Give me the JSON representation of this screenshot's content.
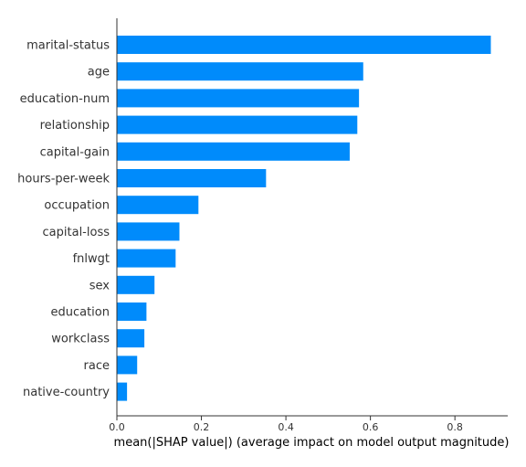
{
  "chart_data": {
    "type": "bar",
    "orientation": "horizontal",
    "categories": [
      "marital-status",
      "age",
      "education-num",
      "relationship",
      "capital-gain",
      "hours-per-week",
      "occupation",
      "capital-loss",
      "fnlwgt",
      "sex",
      "education",
      "workclass",
      "race",
      "native-country"
    ],
    "values": [
      0.885,
      0.583,
      0.573,
      0.569,
      0.551,
      0.353,
      0.193,
      0.148,
      0.139,
      0.089,
      0.07,
      0.065,
      0.048,
      0.024
    ],
    "xlabel": "mean(|SHAP value|) (average impact on model output magnitude)",
    "ylabel": "",
    "xlim": [
      0,
      0.925
    ],
    "xticks": [
      0.0,
      0.2,
      0.4,
      0.6,
      0.8
    ],
    "xtick_labels": [
      "0.0",
      "0.2",
      "0.4",
      "0.6",
      "0.8"
    ],
    "grid": false,
    "bar_color": "#008bfb",
    "axis_color": "#333333"
  }
}
